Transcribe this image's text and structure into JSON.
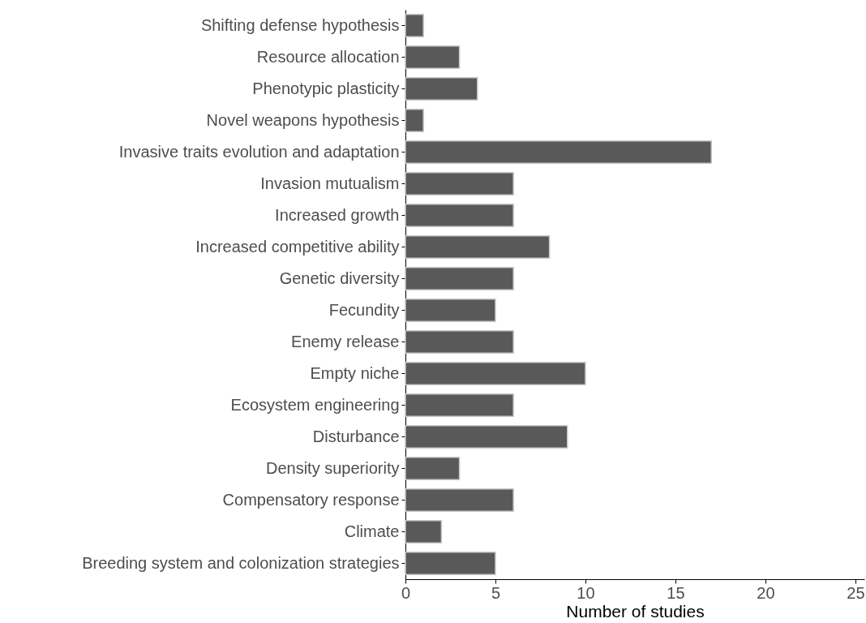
{
  "chart_data": {
    "type": "bar",
    "orientation": "horizontal",
    "xlabel": "Number of studies",
    "categories": [
      "Shifting defense hypothesis",
      "Resource allocation",
      "Phenotypic plasticity",
      "Novel weapons hypothesis",
      "Invasive traits evolution and adaptation",
      "Invasion mutualism",
      "Increased growth",
      "Increased competitive ability",
      "Genetic diversity",
      "Fecundity",
      "Enemy release",
      "Empty niche",
      "Ecosystem engineering",
      "Disturbance",
      "Density superiority",
      "Compensatory response",
      "Climate",
      "Breeding system and colonization strategies"
    ],
    "values": [
      1,
      3,
      4,
      1,
      17,
      6,
      6,
      8,
      6,
      5,
      6,
      10,
      6,
      9,
      3,
      6,
      2,
      5
    ],
    "color": "#595959",
    "xlim": [
      0,
      25.5
    ],
    "xticks": [
      0,
      5,
      10,
      15,
      20,
      25
    ],
    "grid": false
  }
}
